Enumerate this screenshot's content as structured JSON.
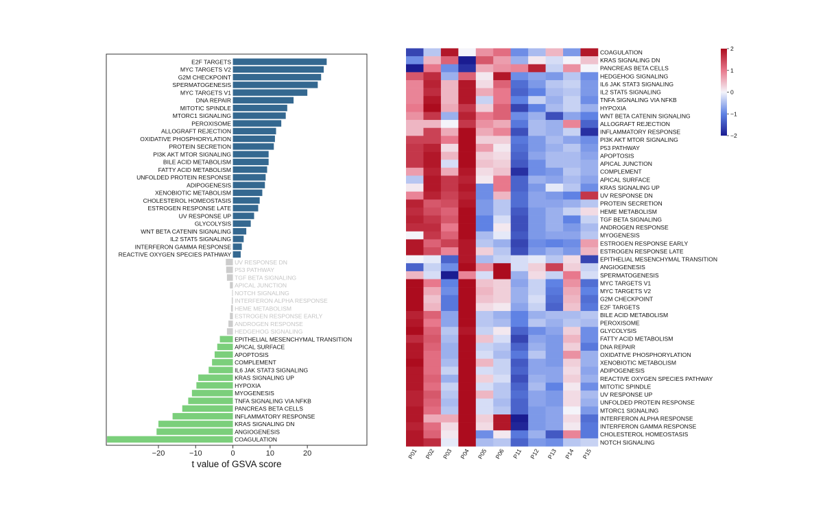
{
  "chart_data": [
    {
      "type": "bar",
      "orientation": "horizontal",
      "xlabel": "t value of GSVA score",
      "ylabel": "",
      "xlim": [
        -34,
        36
      ],
      "xticks": [
        -20,
        -10,
        0,
        10,
        20
      ],
      "grid": false,
      "colors": {
        "up": "#346890",
        "down": "#7bcf7b",
        "ns": "#cccccc",
        "label": "#111111",
        "label_ns": "#c4c4c4"
      },
      "categories": [
        "E2F TARGETS",
        "MYC TARGETS V2",
        "G2M CHECKPOINT",
        "SPERMATOGENESIS",
        "MYC TARGETS V1",
        "DNA REPAIR",
        "MITOTIC SPINDLE",
        "MTORC1 SIGNALING",
        "PEROXISOME",
        "ALLOGRAFT REJECTION",
        "OXIDATIVE PHOSPHORYLATION",
        "PROTEIN SECRETION",
        "PI3K AKT MTOR SIGNALING",
        "BILE ACID METABOLISM",
        "FATTY ACID METABOLISM",
        "UNFOLDED PROTEIN RESPONSE",
        "ADIPOGENESIS",
        "XENOBIOTIC METABOLISM",
        "CHOLESTEROL HOMEOSTASIS",
        "ESTROGEN RESPONSE LATE",
        "UV RESPONSE UP",
        "GLYCOLYSIS",
        "WNT BETA CATENIN SIGNALING",
        "IL2 STAT5 SIGNALING",
        "INTERFERON GAMMA RESPONSE",
        "REACTIVE OXYGEN SPECIES PATHWAY",
        "UV RESPONSE DN",
        "P53 PATHWAY",
        "TGF BETA SIGNALING",
        "APICAL JUNCTION",
        "NOTCH SIGNALING",
        "INTERFERON ALPHA RESPONSE",
        "HEME METABOLISM",
        "ESTROGEN RESPONSE EARLY",
        "ANDROGEN RESPONSE",
        "HEDGEHOG SIGNALING",
        "EPITHELIAL MESENCHYMAL TRANSITION",
        "APICAL SURFACE",
        "APOPTOSIS",
        "COMPLEMENT",
        "IL6 JAK STAT3 SIGNALING",
        "KRAS SIGNALING UP",
        "HYPOXIA",
        "MYOGENESIS",
        "TNFA SIGNALING VIA NFKB",
        "PANCREAS BETA CELLS",
        "INFLAMMATORY RESPONSE",
        "KRAS SIGNALING DN",
        "ANGIOGENESIS",
        "COAGULATION"
      ],
      "values": [
        25.2,
        24.4,
        23.7,
        22.8,
        20.0,
        16.3,
        14.6,
        14.2,
        13.0,
        11.6,
        11.3,
        11.0,
        9.6,
        9.6,
        9.2,
        8.8,
        8.6,
        7.9,
        7.2,
        6.8,
        5.7,
        4.8,
        3.6,
        2.9,
        2.4,
        2.1,
        -1.9,
        -1.8,
        -1.6,
        -0.8,
        -0.2,
        -0.3,
        -0.5,
        -0.8,
        -1.2,
        -1.6,
        -3.5,
        -4.2,
        -4.9,
        -5.6,
        -6.5,
        -9.3,
        -9.8,
        -11.0,
        -12.0,
        -13.6,
        -16.2,
        -20.0,
        -20.5,
        -33.8
      ]
    },
    {
      "type": "heatmap",
      "columns": [
        "P01",
        "P02",
        "P03",
        "P04",
        "P05",
        "P06",
        "P11",
        "P12",
        "P13",
        "P14",
        "P15"
      ],
      "rows": [
        "COAGULATION",
        "KRAS SIGNALING DN",
        "PANCREAS BETA CELLS",
        "HEDGEHOG SIGNALING",
        "IL6 JAK STAT3 SIGNALING",
        "IL2 STAT5 SIGNALING",
        "TNFA SIGNALING VIA NFKB",
        "HYPOXIA",
        "WNT BETA CATENIN SIGNALING",
        "ALLOGRAFT REJECTION",
        "INFLAMMATORY RESPONSE",
        "PI3K AKT MTOR SIGNALING",
        "P53 PATHWAY",
        "APOPTOSIS",
        "APICAL JUNCTION",
        "COMPLEMENT",
        "APICAL SURFACE",
        "KRAS SIGNALING UP",
        "UV RESPONSE DN",
        "PROTEIN SECRETION",
        "HEME METABOLISM",
        "TGF BETA SIGNALING",
        "ANDROGEN RESPONSE",
        "MYOGENESIS",
        "ESTROGEN RESPONSE EARLY",
        "ESTROGEN RESPONSE LATE",
        "EPITHELIAL MESENCHYMAL TRANSITION",
        "ANGIOGENESIS",
        "SPERMATOGENESIS",
        "MYC TARGETS V1",
        "MYC TARGETS V2",
        "G2M CHECKPOINT",
        "E2F TARGETS",
        "BILE ACID METABOLISM",
        "PEROXISOME",
        "GLYCOLYSIS",
        "FATTY ACID METABOLISM",
        "DNA REPAIR",
        "OXIDATIVE PHOSPHORYLATION",
        "XENOBIOTIC METABOLISM",
        "ADIPOGENESIS",
        "REACTIVE OXYGEN SPECIES PATHWAY",
        "MITOTIC SPINDLE",
        "UV RESPONSE UP",
        "UNFOLDED PROTEIN RESPONSE",
        "MTORC1 SIGNALING",
        "INTERFERON ALPHA RESPONSE",
        "INTERFERON GAMMA RESPONSE",
        "CHOLESTEROL HOMEOSTASIS",
        "NOTCH SIGNALING"
      ],
      "values": [
        [
          -1.6,
          -0.4,
          1.9,
          0.0,
          0.8,
          1.1,
          -0.9,
          -0.5,
          0.5,
          -0.8,
          1.9
        ],
        [
          -0.9,
          0.5,
          1.2,
          -2.0,
          1.3,
          0.7,
          -0.6,
          0.1,
          -0.2,
          0.0,
          0.4
        ],
        [
          -2.0,
          1.0,
          -0.9,
          -1.8,
          0.6,
          0.8,
          0.9,
          1.8,
          -0.3,
          0.8,
          0.0
        ],
        [
          1.3,
          1.7,
          -0.6,
          1.2,
          0.1,
          1.9,
          -0.9,
          -0.7,
          -0.8,
          -0.4,
          -0.9
        ],
        [
          0.9,
          1.8,
          0.5,
          1.9,
          0.2,
          1.2,
          -1.2,
          -0.8,
          -0.4,
          -0.3,
          -0.8
        ],
        [
          0.9,
          1.7,
          0.5,
          1.9,
          0.6,
          1.0,
          -1.3,
          -1.0,
          -0.5,
          -0.4,
          -0.8
        ],
        [
          0.9,
          1.9,
          0.5,
          1.9,
          -0.3,
          1.0,
          -1.0,
          -0.3,
          -0.6,
          -0.3,
          -0.9
        ],
        [
          1.0,
          2.0,
          0.6,
          1.6,
          0.3,
          1.2,
          -1.6,
          -1.0,
          -0.5,
          -0.3,
          -0.6
        ],
        [
          0.8,
          1.6,
          -0.6,
          1.8,
          1.0,
          1.2,
          -0.9,
          -0.6,
          -1.5,
          -0.7,
          -1.0
        ],
        [
          0.5,
          0.5,
          0.0,
          1.6,
          0.8,
          0.6,
          -1.1,
          -0.5,
          -0.6,
          0.9,
          -1.3
        ],
        [
          0.5,
          1.5,
          0.6,
          2.0,
          0.6,
          0.9,
          -1.5,
          -0.5,
          -0.6,
          -0.3,
          -1.8
        ],
        [
          1.5,
          1.5,
          1.0,
          2.0,
          0.3,
          0.3,
          -1.1,
          -0.8,
          -0.5,
          -0.7,
          -0.9
        ],
        [
          1.6,
          1.8,
          0.2,
          2.0,
          0.7,
          0.1,
          -1.2,
          -0.8,
          -0.6,
          -0.4,
          -0.8
        ],
        [
          1.6,
          1.9,
          0.5,
          2.0,
          0.3,
          0.2,
          -1.3,
          -0.7,
          -0.5,
          -0.5,
          -0.7
        ],
        [
          1.6,
          1.9,
          -0.2,
          2.0,
          0.4,
          0.3,
          -1.4,
          -0.9,
          -0.5,
          -0.5,
          -0.6
        ],
        [
          0.7,
          1.8,
          0.6,
          1.9,
          0.2,
          0.4,
          -1.8,
          -0.9,
          -0.8,
          -0.4,
          -0.6
        ],
        [
          -0.4,
          1.9,
          1.6,
          1.8,
          0.1,
          1.0,
          -1.3,
          -0.6,
          -0.7,
          -0.5,
          -0.7
        ],
        [
          0.1,
          1.9,
          1.6,
          1.9,
          -0.9,
          1.0,
          -1.3,
          -0.8,
          -0.1,
          -0.4,
          -0.9
        ],
        [
          0.9,
          1.8,
          1.5,
          1.8,
          -0.9,
          0.5,
          -1.2,
          -0.7,
          -0.8,
          -1.0,
          1.6
        ],
        [
          1.8,
          1.3,
          1.4,
          1.9,
          -0.8,
          -0.4,
          -1.2,
          -0.7,
          -0.7,
          -0.6,
          -0.4
        ],
        [
          1.7,
          1.4,
          1.2,
          2.0,
          -0.8,
          -0.4,
          -1.4,
          -0.8,
          -0.6,
          -0.3,
          0.2
        ],
        [
          1.8,
          1.6,
          1.3,
          2.0,
          -1.0,
          -0.2,
          -1.5,
          -0.8,
          -0.6,
          -1.0,
          -0.3
        ],
        [
          1.7,
          1.7,
          1.0,
          2.0,
          -1.0,
          0.1,
          -1.5,
          -0.8,
          -0.6,
          -0.8,
          -0.5
        ],
        [
          0.0,
          1.6,
          1.2,
          2.0,
          -0.5,
          -0.1,
          -1.4,
          -0.8,
          -0.7,
          -0.7,
          -0.4
        ],
        [
          1.9,
          1.2,
          1.5,
          1.9,
          -0.4,
          -0.6,
          -1.6,
          -0.9,
          -1.0,
          -0.9,
          0.7
        ],
        [
          1.9,
          1.4,
          0.9,
          1.9,
          0.3,
          -0.4,
          -1.5,
          -0.8,
          -0.6,
          -0.8,
          0.5
        ],
        [
          0.0,
          -0.1,
          -1.3,
          1.9,
          -0.5,
          -0.3,
          -0.2,
          -0.1,
          -0.4,
          0.2,
          -1.6
        ],
        [
          -1.3,
          -0.3,
          -0.9,
          2.0,
          0.8,
          2.0,
          -0.2,
          0.3,
          1.5,
          0.3,
          -0.3
        ],
        [
          0.5,
          -0.2,
          -2.0,
          0.9,
          -0.2,
          2.0,
          -0.6,
          0.2,
          -0.3,
          1.0,
          -0.2
        ],
        [
          2.0,
          1.0,
          -1.0,
          2.0,
          0.4,
          0.3,
          -0.7,
          -0.3,
          -1.0,
          0.8,
          -1.2
        ],
        [
          2.0,
          0.6,
          -0.9,
          2.0,
          0.5,
          0.3,
          -0.6,
          -0.3,
          -1.1,
          0.6,
          -1.0
        ],
        [
          2.0,
          0.4,
          -1.1,
          2.0,
          0.4,
          0.3,
          -0.6,
          -0.2,
          -1.2,
          0.5,
          -1.2
        ],
        [
          2.0,
          0.5,
          -1.1,
          2.0,
          0.2,
          0.1,
          -0.7,
          -0.3,
          -1.3,
          0.4,
          -1.1
        ],
        [
          1.8,
          1.2,
          -0.7,
          2.0,
          -0.4,
          -0.6,
          -1.0,
          -0.6,
          -0.5,
          -0.5,
          -0.4
        ],
        [
          1.9,
          1.0,
          -0.7,
          2.0,
          -0.4,
          -0.5,
          -1.0,
          -0.4,
          -0.6,
          -0.4,
          -0.5
        ],
        [
          2.0,
          1.2,
          -0.4,
          1.9,
          -0.3,
          0.1,
          -1.3,
          -0.9,
          -0.7,
          0.3,
          -0.9
        ],
        [
          1.7,
          1.3,
          -0.5,
          2.0,
          0.4,
          -0.2,
          -1.6,
          -0.7,
          -0.8,
          0.5,
          -0.9
        ],
        [
          1.9,
          1.2,
          -0.6,
          2.0,
          -0.3,
          -0.4,
          -1.3,
          -0.6,
          -0.8,
          0.3,
          -1.1
        ],
        [
          1.9,
          1.1,
          -0.6,
          2.0,
          -0.2,
          -0.5,
          -1.1,
          -0.4,
          -0.8,
          0.8,
          -0.6
        ],
        [
          2.0,
          1.1,
          -0.5,
          2.0,
          0.5,
          -0.3,
          -1.4,
          -0.7,
          -0.8,
          0.3,
          -0.6
        ],
        [
          1.9,
          1.1,
          -0.3,
          2.0,
          -0.2,
          -0.3,
          -1.3,
          -0.7,
          -0.7,
          0.2,
          -0.7
        ],
        [
          1.9,
          1.2,
          -0.6,
          2.0,
          0.3,
          -0.2,
          -1.5,
          -0.6,
          -0.7,
          0.3,
          -0.6
        ],
        [
          1.9,
          1.1,
          -0.3,
          2.0,
          -0.2,
          -0.4,
          -1.3,
          -0.5,
          -1.0,
          0.1,
          -0.9
        ],
        [
          1.8,
          1.3,
          -0.4,
          2.0,
          0.5,
          -0.4,
          -1.2,
          -0.7,
          -0.8,
          0.2,
          -0.5
        ],
        [
          1.8,
          1.2,
          -0.5,
          2.0,
          -0.2,
          -0.5,
          -1.3,
          -0.7,
          -0.8,
          0.2,
          -0.6
        ],
        [
          1.9,
          1.1,
          -0.4,
          2.0,
          -0.2,
          -0.4,
          -1.3,
          -0.8,
          -0.7,
          0.0,
          -0.8
        ],
        [
          1.9,
          0.6,
          0.6,
          2.0,
          0.3,
          1.9,
          -2.0,
          -0.8,
          -0.7,
          0.2,
          -1.2
        ],
        [
          1.8,
          1.1,
          0.2,
          2.0,
          0.2,
          1.9,
          -1.9,
          -0.8,
          -0.7,
          0.1,
          -1.1
        ],
        [
          1.9,
          1.2,
          0.1,
          2.0,
          -0.9,
          0.1,
          -1.1,
          -0.6,
          -1.4,
          0.9,
          -1.1
        ],
        [
          1.9,
          1.7,
          -0.1,
          2.0,
          -0.5,
          -0.4,
          -1.3,
          -0.8,
          -0.9,
          -0.4,
          -0.3
        ]
      ],
      "colorbar": {
        "range": [
          -2,
          2
        ],
        "ticks": [
          2,
          1,
          0,
          -1,
          -2
        ],
        "tick_labels": [
          "2",
          "1",
          "0",
          "−1",
          "−2"
        ]
      },
      "colormap": "coolwarm (blue-white-red)"
    }
  ]
}
